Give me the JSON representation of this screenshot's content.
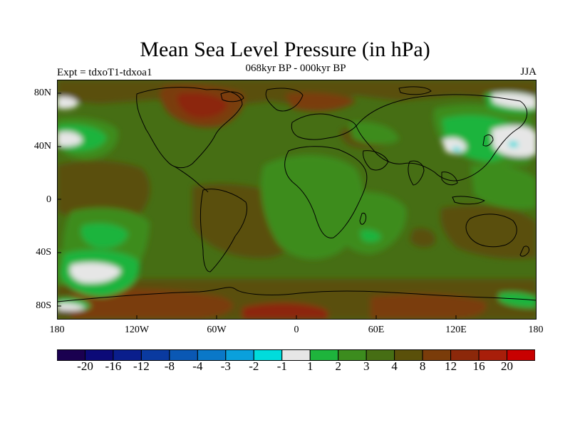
{
  "title": "Mean Sea Level Pressure (in hPa)",
  "subtitle": "068kyr BP - 000kyr BP",
  "experiment": "Expt = tdxoT1-tdxoa1",
  "season": "JJA",
  "lat_ticks": [
    "80N",
    "40N",
    "0",
    "40S",
    "80S"
  ],
  "lon_ticks": [
    "180",
    "120W",
    "60W",
    "0",
    "60E",
    "120E",
    "180"
  ],
  "colorbar": {
    "labels": [
      "-20",
      "-16",
      "-12",
      "-8",
      "-4",
      "-3",
      "-2",
      "-1",
      "1",
      "2",
      "3",
      "4",
      "8",
      "12",
      "16",
      "20"
    ],
    "colors": [
      "#1a0050",
      "#0c0a78",
      "#0a1e8c",
      "#0a3aa0",
      "#0a58b4",
      "#0a78c8",
      "#0aa0dc",
      "#00dcdc",
      "#e6e6e6",
      "#1eb43c",
      "#3c8c1e",
      "#466e14",
      "#5a500a",
      "#7a3c0a",
      "#8c280a",
      "#a81e0a",
      "#c80000"
    ]
  },
  "colors": {
    "background_field": "#466e14",
    "positive_mid": "#5a500a",
    "positive_high": "#7a3c0a",
    "light_green": "#3c8c1e",
    "bright_green": "#1eb43c",
    "near_zero": "#e6e6e6",
    "cyan": "#00dcdc"
  }
}
